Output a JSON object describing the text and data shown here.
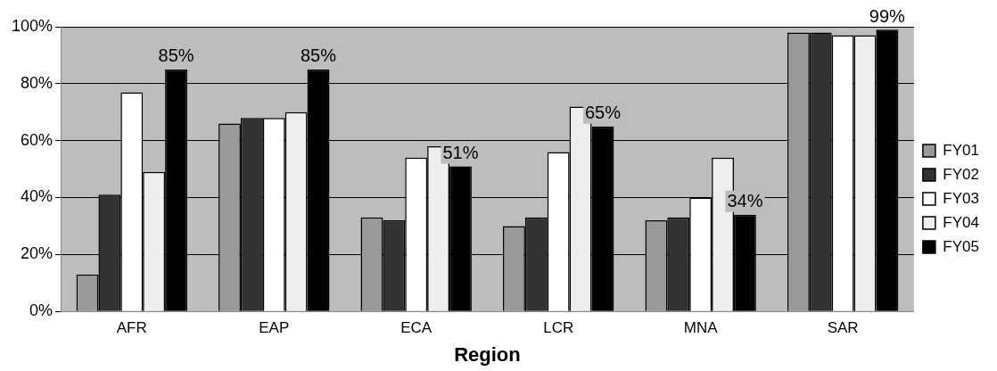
{
  "chart_data": {
    "type": "bar",
    "xlabel": "Region",
    "categories": [
      "AFR",
      "EAP",
      "ECA",
      "LCR",
      "MNA",
      "SAR"
    ],
    "series": [
      {
        "name": "FY01",
        "color": "#999999",
        "values": [
          13,
          66,
          33,
          30,
          32,
          98
        ]
      },
      {
        "name": "FY02",
        "color": "#333333",
        "values": [
          41,
          68,
          32,
          33,
          33,
          98
        ]
      },
      {
        "name": "FY03",
        "color": "#ffffff",
        "values": [
          77,
          68,
          54,
          56,
          40,
          97
        ]
      },
      {
        "name": "FY04",
        "color": "#eeeeee",
        "values": [
          49,
          70,
          58,
          72,
          54,
          97
        ]
      },
      {
        "name": "FY05",
        "color": "#000000",
        "values": [
          85,
          85,
          51,
          65,
          34,
          99
        ],
        "value_labels": [
          "85%",
          "85%",
          "51%",
          "65%",
          "34%",
          "99%"
        ]
      }
    ],
    "ylim": [
      0,
      100
    ],
    "yticks": [
      {
        "value": 0,
        "label": "0%"
      },
      {
        "value": 20,
        "label": "20%"
      },
      {
        "value": 40,
        "label": "40%"
      },
      {
        "value": 60,
        "label": "60%"
      },
      {
        "value": 80,
        "label": "80%"
      },
      {
        "value": 100,
        "label": "100%"
      }
    ],
    "grid": "y",
    "legend": "right"
  }
}
